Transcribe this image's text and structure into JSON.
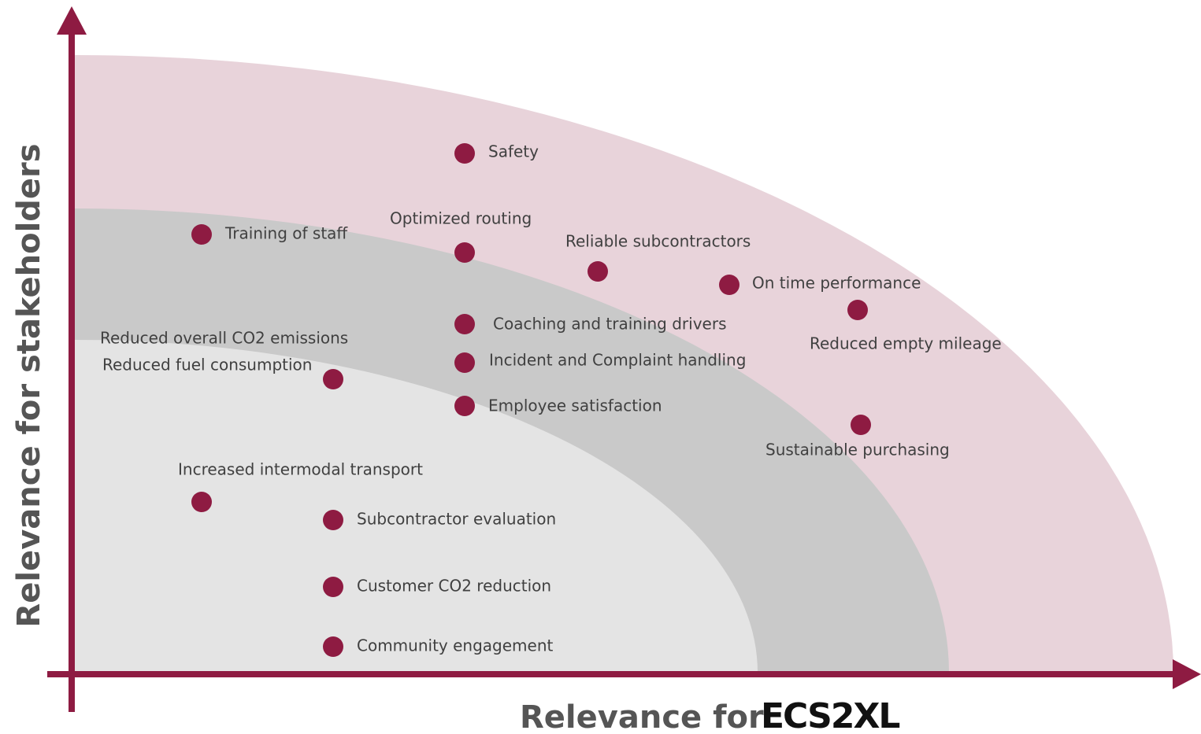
{
  "y_axis_label": "Relevance for stakeholders",
  "x_axis_label": "Relevance for",
  "logo": "ECS2XL",
  "items": [
    {
      "label": "Safety"
    },
    {
      "label": "Training of staff"
    },
    {
      "label": "Optimized routing"
    },
    {
      "label": "Reliable subcontractors"
    },
    {
      "label": "On time performance"
    },
    {
      "label": "Reduced empty mileage"
    },
    {
      "label": "Coaching and training drivers"
    },
    {
      "label": "Incident and Complaint handling"
    },
    {
      "label": "Employee satisfaction"
    },
    {
      "label": "Sustainable purchasing"
    },
    {
      "label": "Reduced overall CO2 emissions"
    },
    {
      "label": "Reduced fuel consumption"
    },
    {
      "label": "Increased intermodal transport"
    },
    {
      "label": "Subcontractor evaluation"
    },
    {
      "label": "Customer CO2 reduction"
    },
    {
      "label": "Community engagement"
    }
  ]
}
